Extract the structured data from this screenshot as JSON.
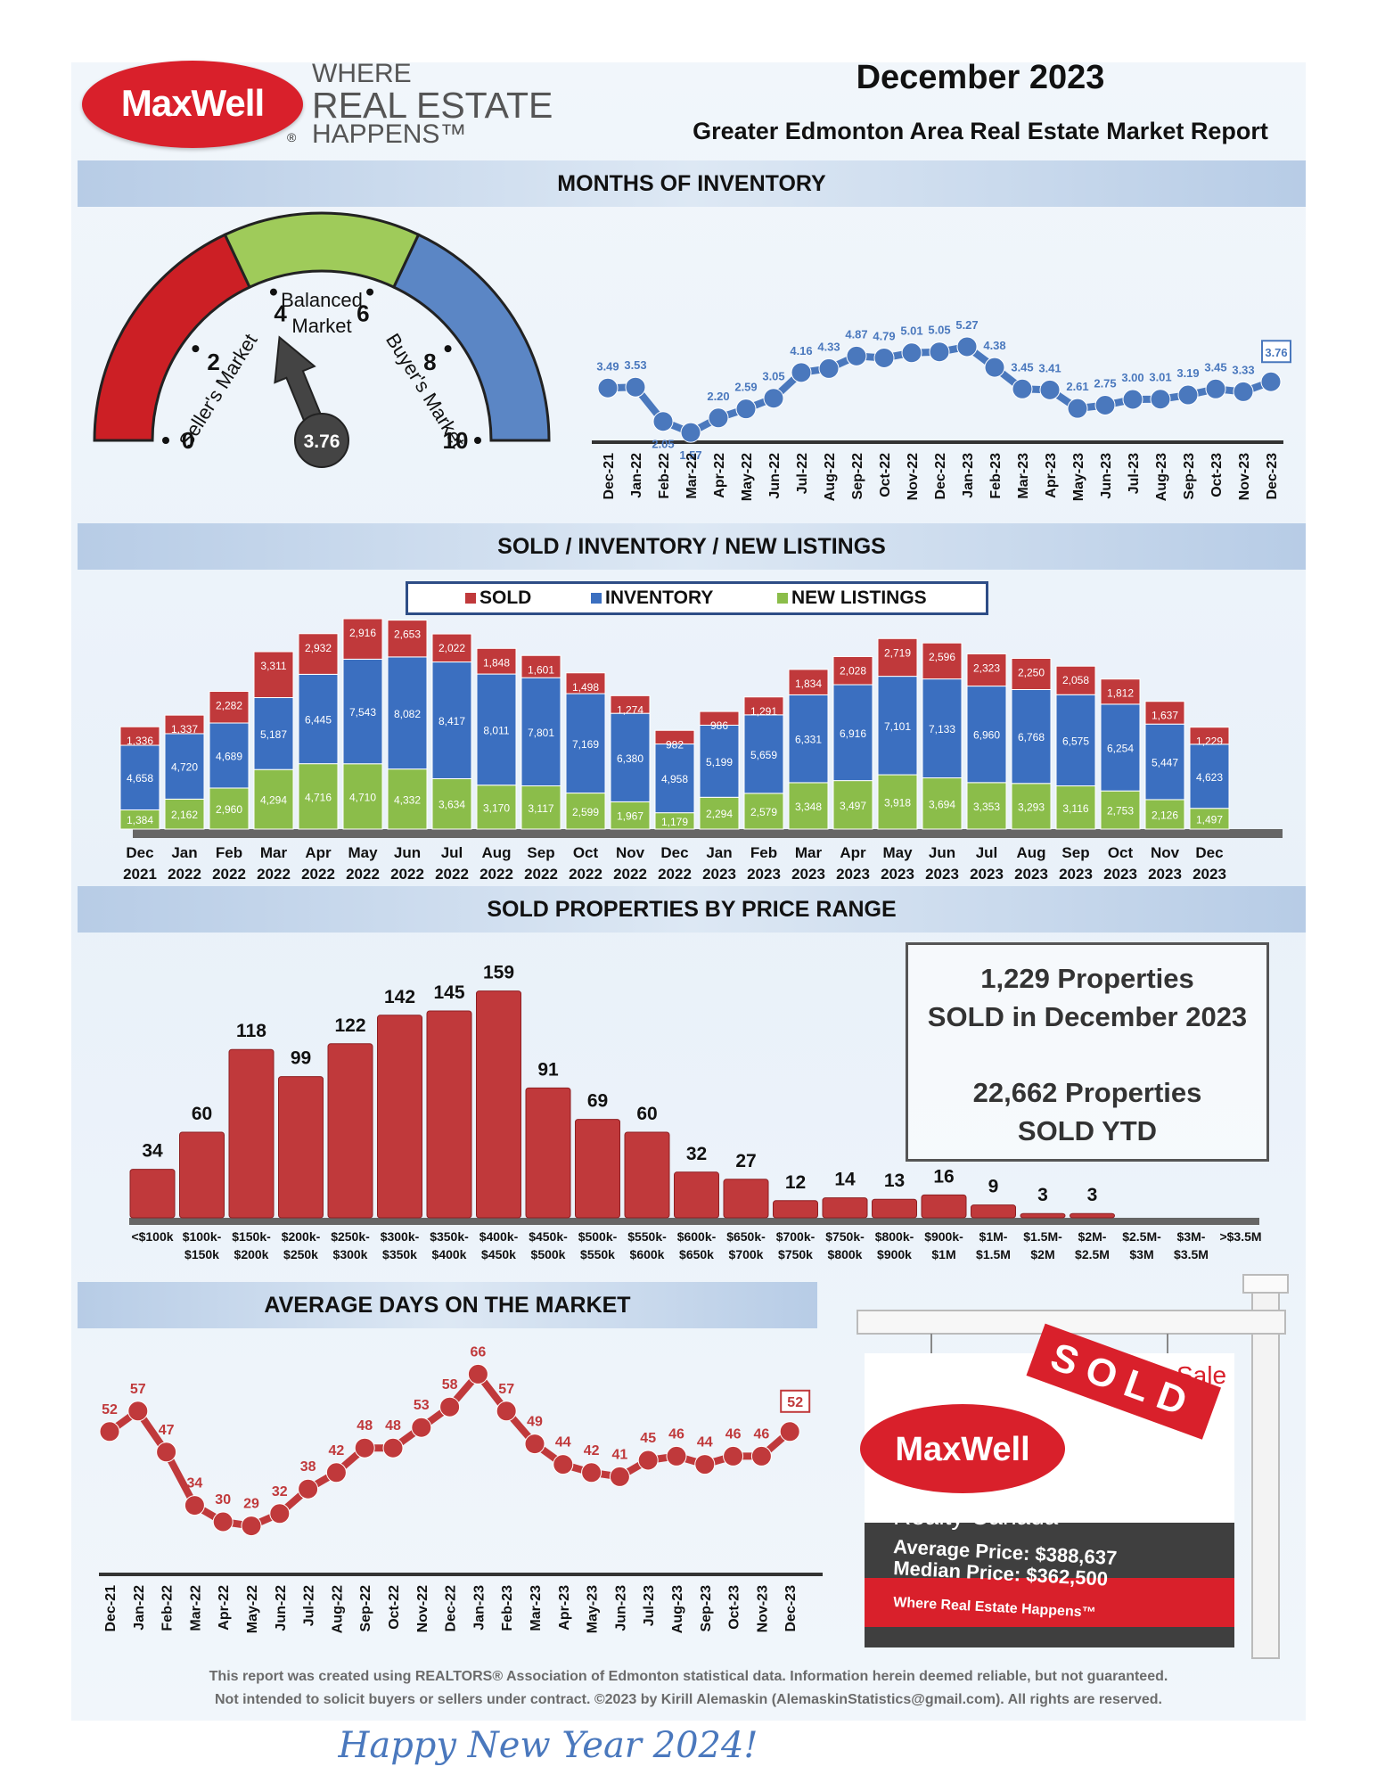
{
  "header": {
    "brand": "MaxWell",
    "tagline_1": "WHERE",
    "tagline_2": "REAL ESTATE",
    "tagline_3": "HAPPENS™",
    "month": "December 2023",
    "subtitle": "Greater Edmonton Area Real Estate Market Report"
  },
  "sections": {
    "moi": "MONTHS OF INVENTORY",
    "sold_inv": "SOLD / INVENTORY / NEW LISTINGS",
    "price": "SOLD PROPERTIES BY PRICE RANGE",
    "dom": "AVERAGE DAYS ON THE MARKET"
  },
  "gauge": {
    "seller_label": "Seller's Market",
    "balanced_label_1": "Balanced",
    "balanced_label_2": "Market",
    "buyer_label": "Buyer's Market",
    "ticks": [
      "0",
      "2",
      "4",
      "6",
      "8",
      "10"
    ],
    "value": 3.76,
    "value_label": "3.76",
    "colors": {
      "seller": "#cc1f25",
      "balanced": "#9fcb5a",
      "buyer": "#5b86c5"
    }
  },
  "legend": {
    "sold": "SOLD",
    "inventory": "INVENTORY",
    "new_listings": "NEW LISTINGS"
  },
  "info_box": {
    "line1": "1,229 Properties",
    "line2": "SOLD in December 2023",
    "line3": "22,662 Properties",
    "line4": "SOLD YTD"
  },
  "sign": {
    "sold": "SOLD",
    "sale": "Sale",
    "brand": "MaxWell",
    "company": "Realty Canada",
    "avg": "Average Price: $388,637",
    "median": "Median Price: $362,500",
    "tagline": "Where Real Estate Happens™"
  },
  "footer": {
    "line1": "This report was created using REALTORS® Association of Edmonton statistical data. Information herein deemed reliable, but not guaranteed.",
    "line2": "Not intended to solicit buyers or sellers under contract. ©2023 by Kirill Alemaskin (AlemaskinStatistics@gmail.com). All rights are reserved.",
    "greeting": "Happy New Year 2024!"
  },
  "chart_data": [
    {
      "type": "line",
      "x": [
        "Dec-21",
        "Jan-22",
        "Feb-22",
        "Mar-22",
        "Apr-22",
        "May-22",
        "Jun-22",
        "Jul-22",
        "Aug-22",
        "Sep-22",
        "Oct-22",
        "Nov-22",
        "Dec-22",
        "Jan-23",
        "Feb-23",
        "Mar-23",
        "Apr-23",
        "May-23",
        "Jun-23",
        "Jul-23",
        "Aug-23",
        "Sep-23",
        "Oct-23",
        "Nov-23",
        "Dec-23"
      ],
      "values": [
        3.49,
        3.53,
        2.05,
        1.57,
        2.2,
        2.59,
        3.05,
        4.16,
        4.33,
        4.87,
        4.79,
        5.01,
        5.05,
        5.27,
        4.38,
        3.45,
        3.41,
        2.61,
        2.75,
        3.0,
        3.01,
        3.19,
        3.45,
        3.33,
        3.76
      ],
      "labels": [
        "3.49",
        "3.53",
        "2.05",
        "1.57",
        "2.20",
        "2.59",
        "3.05",
        "4.16",
        "4.33",
        "4.87",
        "4.79",
        "5.01",
        "5.05",
        "5.27",
        "4.38",
        "3.45",
        "3.41",
        "2.61",
        "2.75",
        "3.00",
        "3.01",
        "3.19",
        "3.45",
        "3.33",
        "3.76"
      ],
      "color": "#4a78bd"
    },
    {
      "type": "bar",
      "categories": [
        [
          "Dec",
          "2021"
        ],
        [
          "Jan",
          "2022"
        ],
        [
          "Feb",
          "2022"
        ],
        [
          "Mar",
          "2022"
        ],
        [
          "Apr",
          "2022"
        ],
        [
          "May",
          "2022"
        ],
        [
          "Jun",
          "2022"
        ],
        [
          "Jul",
          "2022"
        ],
        [
          "Aug",
          "2022"
        ],
        [
          "Sep",
          "2022"
        ],
        [
          "Oct",
          "2022"
        ],
        [
          "Nov",
          "2022"
        ],
        [
          "Dec",
          "2022"
        ],
        [
          "Jan",
          "2023"
        ],
        [
          "Feb",
          "2023"
        ],
        [
          "Mar",
          "2023"
        ],
        [
          "Apr",
          "2023"
        ],
        [
          "May",
          "2023"
        ],
        [
          "Jun",
          "2023"
        ],
        [
          "Jul",
          "2023"
        ],
        [
          "Aug",
          "2023"
        ],
        [
          "Sep",
          "2023"
        ],
        [
          "Oct",
          "2023"
        ],
        [
          "Nov",
          "2023"
        ],
        [
          "Dec",
          "2023"
        ]
      ],
      "series": [
        {
          "name": "SOLD",
          "color": "#c0393b",
          "values": [
            1336,
            1337,
            2282,
            3311,
            2932,
            2916,
            2653,
            2022,
            1848,
            1601,
            1498,
            1274,
            982,
            986,
            1291,
            1834,
            2028,
            2719,
            2596,
            2323,
            2250,
            2058,
            1812,
            1637,
            1229
          ]
        },
        {
          "name": "INVENTORY",
          "color": "#3b6fc0",
          "values": [
            4658,
            4720,
            4689,
            5187,
            6445,
            7543,
            8082,
            8417,
            8011,
            7801,
            7169,
            6380,
            4958,
            5199,
            5659,
            6331,
            6916,
            7101,
            7133,
            6960,
            6768,
            6575,
            6254,
            5447,
            4623
          ]
        },
        {
          "name": "NEW LISTINGS",
          "color": "#8bbd4a",
          "values": [
            1384,
            2162,
            2960,
            4294,
            4716,
            4710,
            4332,
            3634,
            3170,
            3117,
            2599,
            1967,
            1179,
            2294,
            2579,
            3348,
            3497,
            3918,
            3694,
            3353,
            3293,
            3116,
            2753,
            2126,
            1497
          ]
        }
      ]
    },
    {
      "type": "bar",
      "categories": [
        [
          "<$100k",
          ""
        ],
        [
          "$100k-",
          "$150k"
        ],
        [
          "$150k-",
          "$200k"
        ],
        [
          "$200k-",
          "$250k"
        ],
        [
          "$250k-",
          "$300k"
        ],
        [
          "$300k-",
          "$350k"
        ],
        [
          "$350k-",
          "$400k"
        ],
        [
          "$400k-",
          "$450k"
        ],
        [
          "$450k-",
          "$500k"
        ],
        [
          "$500k-",
          "$550k"
        ],
        [
          "$550k-",
          "$600k"
        ],
        [
          "$600k-",
          "$650k"
        ],
        [
          "$650k-",
          "$700k"
        ],
        [
          "$700k-",
          "$750k"
        ],
        [
          "$750k-",
          "$800k"
        ],
        [
          "$800k-",
          "$900k"
        ],
        [
          "$900k-",
          "$1M"
        ],
        [
          "$1M-",
          "$1.5M"
        ],
        [
          "$1.5M-",
          "$2M"
        ],
        [
          "$2M-",
          "$2.5M"
        ],
        [
          "$2.5M-",
          "$3M"
        ],
        [
          "$3M-",
          "$3.5M"
        ],
        [
          ">$3.5M",
          ""
        ]
      ],
      "values": [
        34,
        60,
        118,
        99,
        122,
        142,
        145,
        159,
        91,
        69,
        60,
        32,
        27,
        12,
        14,
        13,
        16,
        9,
        3,
        3,
        0,
        0,
        0
      ],
      "labels": [
        "34",
        "60",
        "118",
        "99",
        "122",
        "142",
        "145",
        "159",
        "91",
        "69",
        "60",
        "32",
        "27",
        "12",
        "14",
        "13",
        "16",
        "9",
        "3",
        "3",
        "",
        "",
        ""
      ],
      "color": "#c0393b"
    },
    {
      "type": "line",
      "x": [
        "Dec-21",
        "Jan-22",
        "Feb-22",
        "Mar-22",
        "Apr-22",
        "May-22",
        "Jun-22",
        "Jul-22",
        "Aug-22",
        "Sep-22",
        "Oct-22",
        "Nov-22",
        "Dec-22",
        "Jan-23",
        "Feb-23",
        "Mar-23",
        "Apr-23",
        "May-23",
        "Jun-23",
        "Jul-23",
        "Aug-23",
        "Sep-23",
        "Oct-23",
        "Nov-23",
        "Dec-23"
      ],
      "values": [
        52,
        57,
        47,
        34,
        30,
        29,
        32,
        38,
        42,
        48,
        48,
        53,
        58,
        66,
        57,
        49,
        44,
        42,
        41,
        45,
        46,
        44,
        46,
        46,
        52
      ],
      "labels": [
        "52",
        "57",
        "47",
        "34",
        "30",
        "29",
        "32",
        "38",
        "42",
        "48",
        "48",
        "53",
        "58",
        "66",
        "57",
        "49",
        "44",
        "42",
        "41",
        "45",
        "46",
        "44",
        "46",
        "46",
        "52"
      ],
      "color": "#c0393b"
    }
  ]
}
